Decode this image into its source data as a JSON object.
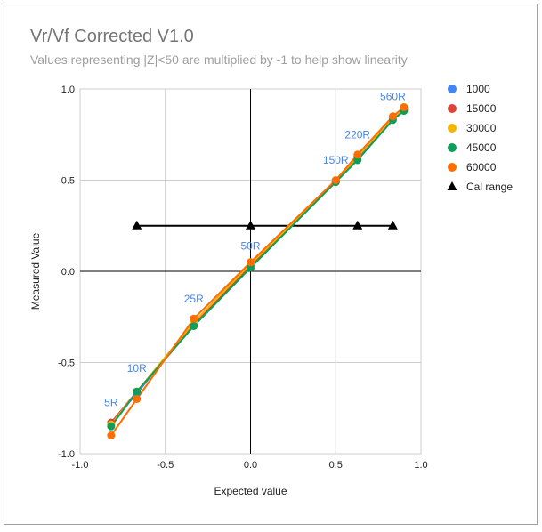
{
  "chart_data": {
    "type": "scatter",
    "title": "Vr/Vf Corrected V1.0",
    "subtitle": "Values representing |Z|<50 are multiplied by -1 to help show linearity",
    "xlabel": "Expected value",
    "ylabel": "Measured Value",
    "xlim": [
      -1.0,
      1.0
    ],
    "ylim": [
      -1.0,
      1.0
    ],
    "xticks": [
      -1.0,
      -0.5,
      0.0,
      0.5,
      1.0
    ],
    "yticks": [
      -1.0,
      -0.5,
      0.0,
      0.5,
      1.0
    ],
    "xtick_labels": [
      "-1.0",
      "-0.5",
      "0.0",
      "0.5",
      "1.0"
    ],
    "ytick_labels": [
      "-1.0",
      "-0.5",
      "0.0",
      "0.5",
      "1.0"
    ],
    "grid": true,
    "legend_position": "right",
    "x": [
      -0.818,
      -0.667,
      -0.333,
      0.0,
      0.5,
      0.628,
      0.835,
      0.9
    ],
    "series": [
      {
        "name": "1000",
        "color": "#4285f4",
        "values": [
          -0.83,
          -0.67,
          -0.28,
          0.04,
          0.49,
          0.62,
          0.84,
          0.89
        ]
      },
      {
        "name": "15000",
        "color": "#db4437",
        "values": [
          -0.83,
          -0.66,
          -0.29,
          0.03,
          0.49,
          0.63,
          0.84,
          0.89
        ]
      },
      {
        "name": "30000",
        "color": "#f4b400",
        "values": [
          -0.84,
          -0.66,
          -0.28,
          0.04,
          0.49,
          0.63,
          0.84,
          0.89
        ]
      },
      {
        "name": "45000",
        "color": "#0f9d58",
        "values": [
          -0.85,
          -0.66,
          -0.3,
          0.02,
          0.49,
          0.61,
          0.83,
          0.88
        ]
      },
      {
        "name": "60000",
        "color": "#ff6d01",
        "values": [
          -0.9,
          -0.7,
          -0.26,
          0.05,
          0.5,
          0.64,
          0.85,
          0.9
        ]
      }
    ],
    "cal_range": {
      "name": "Cal range",
      "color": "#000000",
      "x": [
        -0.667,
        0.0,
        0.628,
        0.835
      ],
      "y": [
        0.25,
        0.25,
        0.25,
        0.25
      ]
    },
    "annotations": [
      {
        "label": "5R",
        "x": -0.818,
        "y": -0.74
      },
      {
        "label": "10R",
        "x": -0.667,
        "y": -0.55
      },
      {
        "label": "25R",
        "x": -0.333,
        "y": -0.17
      },
      {
        "label": "50R",
        "x": 0.0,
        "y": 0.12
      },
      {
        "label": "150R",
        "x": 0.5,
        "y": 0.59
      },
      {
        "label": "220R",
        "x": 0.628,
        "y": 0.73
      },
      {
        "label": "560R",
        "x": 0.835,
        "y": 0.94
      }
    ]
  }
}
